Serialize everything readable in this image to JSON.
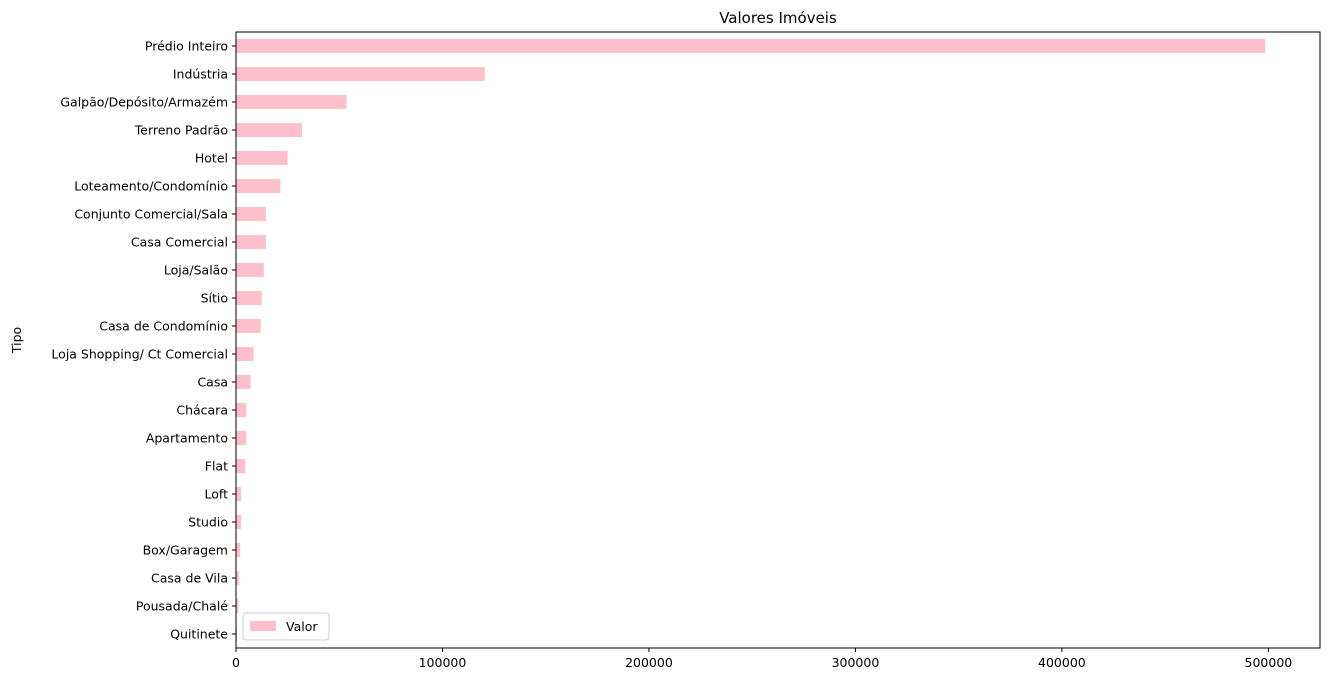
{
  "chart_data": {
    "type": "bar",
    "orientation": "horizontal",
    "title": "Valores Imóveis",
    "xlabel": "",
    "ylabel": "Tipo",
    "xlim": [
      0,
      525000
    ],
    "xticks": [
      0,
      100000,
      200000,
      300000,
      400000,
      500000
    ],
    "xtick_labels": [
      "0",
      "100000",
      "200000",
      "300000",
      "400000",
      "500000"
    ],
    "grid": false,
    "legend_position": "lower-left",
    "bar_color": "#ffc0cb",
    "categories": [
      "Prédio Inteiro",
      "Indústria",
      "Galpão/Depósito/Armazém",
      "Terreno Padrão",
      "Hotel",
      "Loteamento/Condomínio",
      "Conjunto Comercial/Sala",
      "Casa Comercial",
      "Loja/Salão",
      "Sítio",
      "Casa de Condomínio",
      "Loja Shopping/ Ct Comercial",
      "Casa",
      "Chácara",
      "Apartamento",
      "Flat",
      "Loft",
      "Studio",
      "Box/Garagem",
      "Casa de Vila",
      "Pousada/Chalé",
      "Quitinete"
    ],
    "series": [
      {
        "name": "Valor",
        "values": [
          498500,
          120500,
          53500,
          32000,
          25000,
          21500,
          14500,
          14500,
          13500,
          12500,
          12000,
          8500,
          7000,
          5000,
          5000,
          4500,
          2500,
          2500,
          2000,
          1500,
          1200,
          500
        ]
      }
    ]
  }
}
